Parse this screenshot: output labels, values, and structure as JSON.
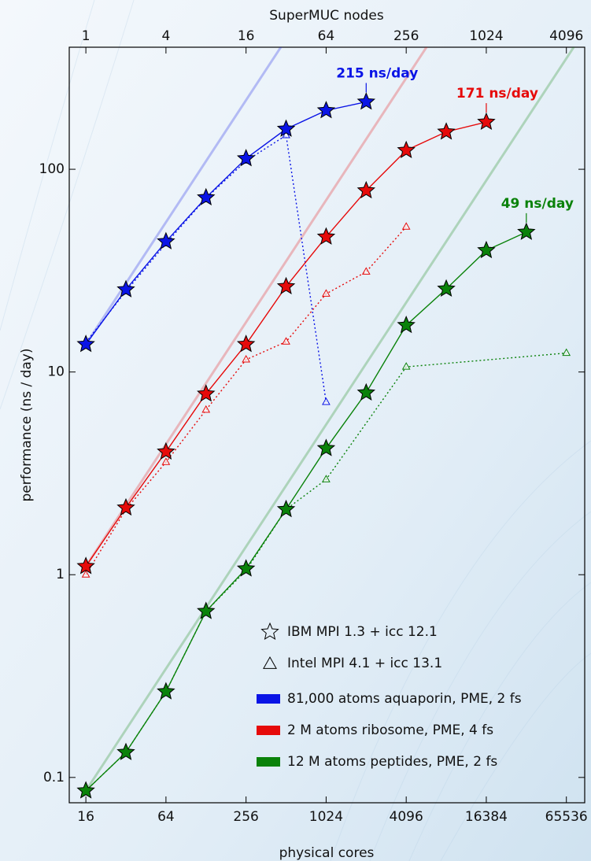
{
  "chart_data": {
    "type": "line",
    "log_x": true,
    "log_y": true,
    "xlabel": "physical cores",
    "x2label": "SuperMUC nodes",
    "ylabel": "performance  (ns / day)",
    "xlim": [
      12,
      90000
    ],
    "xticks": [
      16,
      64,
      256,
      1024,
      4096,
      16384,
      65536
    ],
    "x2lim": [
      0.75,
      5625
    ],
    "x2ticks": [
      1,
      4,
      16,
      64,
      256,
      1024,
      4096
    ],
    "ylim": [
      0.075,
      400
    ],
    "yticks": [
      0.1,
      1,
      10,
      100
    ],
    "ideal_scaling": true,
    "variants": [
      {
        "name": "IBM MPI 1.3 + icc 12.1",
        "marker": "star",
        "line_style": "solid"
      },
      {
        "name": "Intel MPI 4.1 + icc 13.1",
        "marker": "triangle",
        "line_style": "dotted"
      }
    ],
    "systems": [
      {
        "name": "81,000 atoms aquaporin, PME, 2 fs",
        "color": "#0a14e6",
        "annotation": "215 ns/day",
        "runs": [
          {
            "x": [
              16,
              32,
              64,
              128,
              256,
              512,
              1024,
              2048
            ],
            "values": [
              13.7,
              25.5,
              44,
              72.5,
              113,
              158,
              195,
              215
            ]
          },
          {
            "x": [
              16,
              32,
              64,
              128,
              256,
              512,
              1024
            ],
            "values": [
              14,
              25,
              43,
              72,
              110,
              147,
              7.1
            ]
          }
        ]
      },
      {
        "name": "2 M atoms ribosome, PME, 4 fs",
        "color": "#e60a0a",
        "annotation": "171 ns/day",
        "runs": [
          {
            "x": [
              16,
              32,
              64,
              128,
              256,
              512,
              1024,
              2048,
              4096,
              8192,
              16384
            ],
            "values": [
              1.1,
              2.14,
              4.04,
              7.8,
              13.7,
              26.4,
              46.4,
              78.5,
              124,
              153,
              171
            ]
          },
          {
            "x": [
              16,
              32,
              64,
              128,
              256,
              512,
              1024,
              2048,
              4096
            ],
            "values": [
              1.0,
              2.1,
              3.59,
              6.5,
              11.5,
              14.1,
              24.3,
              31.2,
              52
            ]
          }
        ]
      },
      {
        "name": "12 M atoms peptides, PME, 2 fs",
        "color": "#0a820a",
        "annotation": "49 ns/day",
        "runs": [
          {
            "x": [
              16,
              32,
              64,
              128,
              256,
              512,
              1024,
              2048,
              4096,
              8192,
              16384,
              32768
            ],
            "values": [
              0.086,
              0.133,
              0.265,
              0.66,
              1.07,
              2.1,
              4.2,
              7.9,
              17,
              25.7,
              39.8,
              49
            ]
          },
          {
            "x": [
              16,
              32,
              64,
              128,
              256,
              512,
              1024,
              4096,
              65536
            ],
            "values": [
              0.086,
              0.133,
              0.265,
              0.66,
              1.05,
              2.1,
              2.95,
              10.6,
              12.4
            ]
          }
        ]
      }
    ]
  }
}
